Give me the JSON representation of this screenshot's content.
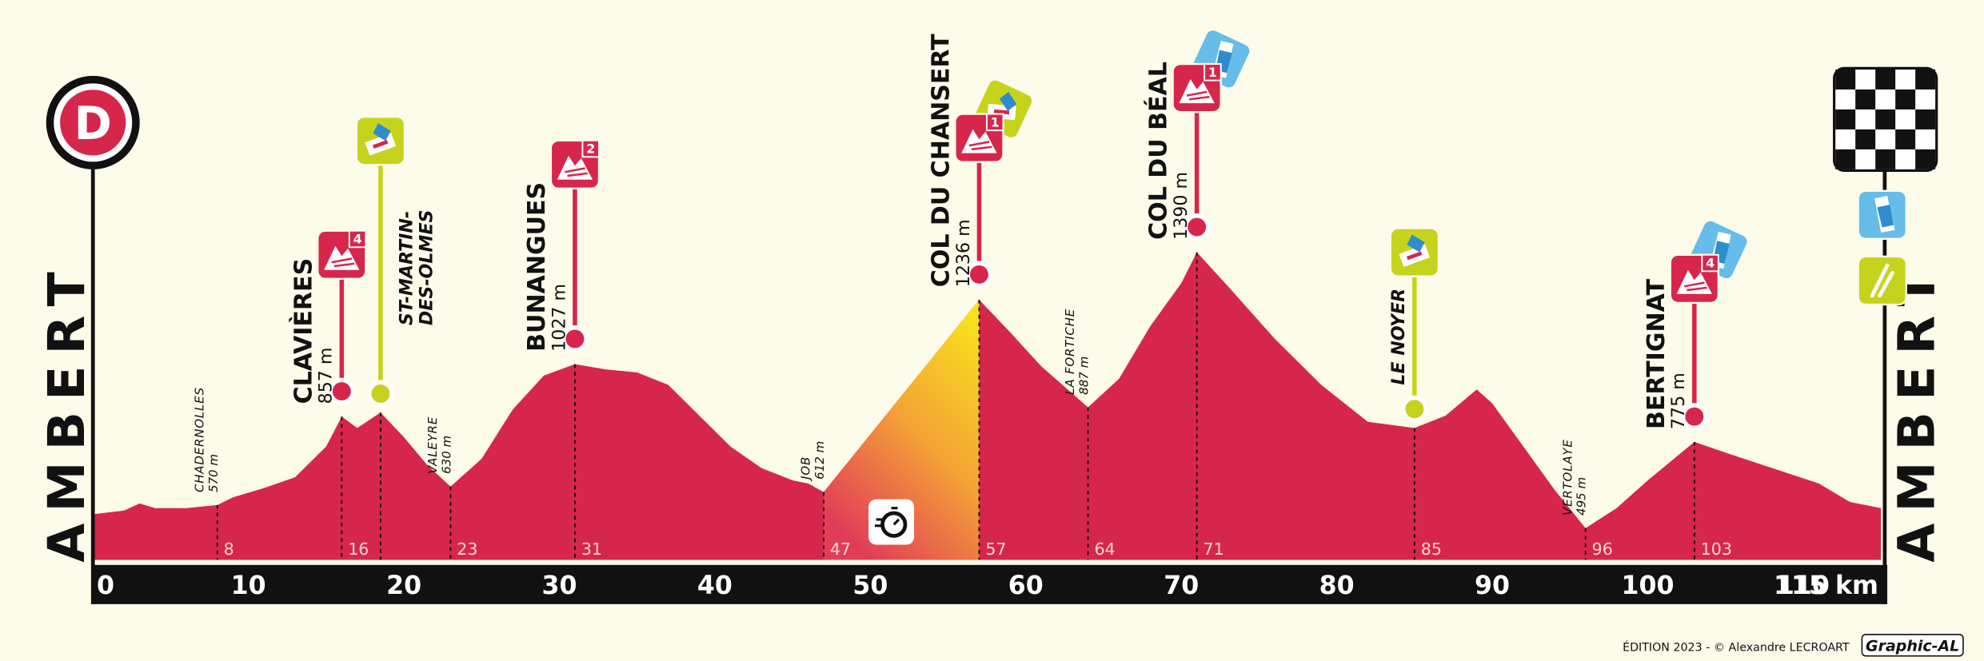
{
  "chart_data": {
    "type": "area",
    "color": "#d7264b",
    "start_label": "D",
    "start": "AMBERT",
    "finish": "AMBERT",
    "x": [
      0,
      2,
      3,
      4,
      6,
      8,
      9,
      11,
      13,
      15,
      16,
      17,
      18.5,
      20,
      21.5,
      23,
      25,
      27,
      29,
      31,
      33,
      35,
      37,
      39,
      41,
      43,
      45,
      46,
      47,
      57,
      59,
      61,
      64,
      66,
      68,
      70,
      71,
      73,
      76,
      79,
      82,
      85,
      87,
      89,
      90,
      92,
      94,
      96,
      98,
      100,
      103,
      105,
      108,
      111,
      113,
      115
    ],
    "values": [
      540,
      552,
      575,
      560,
      560,
      570,
      595,
      625,
      660,
      760,
      857,
      820,
      870,
      790,
      700,
      630,
      720,
      880,
      990,
      1027,
      1010,
      1000,
      960,
      860,
      760,
      690,
      650,
      640,
      612,
      1236,
      1130,
      1020,
      887,
      980,
      1150,
      1290,
      1390,
      1280,
      1110,
      960,
      840,
      820,
      860,
      945,
      900,
      760,
      620,
      495,
      560,
      650,
      775,
      740,
      690,
      640,
      580,
      560
    ],
    "xlim": [
      0,
      115
    ],
    "ylim": [
      392,
      1450
    ],
    "xticks": [
      0,
      10,
      20,
      30,
      40,
      50,
      60,
      70,
      80,
      90,
      100,
      110,
      {
        "value": 115,
        "label": "115 km"
      }
    ],
    "highlight_x": [
      47,
      57
    ],
    "waypoints": [
      {
        "name": "CHADERNOLLES",
        "km": 8,
        "elevation": 570,
        "elevation_label": "570 m",
        "kind": "place"
      },
      {
        "name": "CLAVIÈRES",
        "km": 16,
        "elevation": 857,
        "elevation_label": "857 m",
        "kind": "climb",
        "category": 4
      },
      {
        "name": [
          "ST-MARTIN-",
          "DES-OLMES"
        ],
        "km": 18.5,
        "elevation": 870,
        "kind": "sprint",
        "km_marker": false
      },
      {
        "name": "VALEYRE",
        "km": 23,
        "elevation": 630,
        "elevation_label": "630 m",
        "kind": "place"
      },
      {
        "name": "BUNANGUES",
        "km": 31,
        "elevation": 1027,
        "elevation_label": "1027 m",
        "kind": "climb",
        "category": 2
      },
      {
        "name": "JOB",
        "km": 47,
        "elevation": 612,
        "elevation_label": "612 m",
        "kind": "place"
      },
      {
        "name": "COL DU CHANSERT",
        "km": 57,
        "elevation": 1236,
        "elevation_label": "1236 m",
        "kind": "climb",
        "category": 1,
        "extra": "sprint"
      },
      {
        "name": "LA FORTICHE",
        "km": 64,
        "elevation": 887,
        "elevation_label": "887 m",
        "kind": "place"
      },
      {
        "name": "COL DU BÉAL",
        "km": 71,
        "elevation": 1390,
        "elevation_label": "1390 m",
        "kind": "climb",
        "category": 1,
        "extra": "feed"
      },
      {
        "name": "LE NOYER",
        "km": 85,
        "elevation": 820,
        "kind": "sprint"
      },
      {
        "name": "VERTOLAYE",
        "km": 96,
        "elevation": 495,
        "elevation_label": "495 m",
        "kind": "place"
      },
      {
        "name": "BERTIGNAT",
        "km": 103,
        "elevation": 775,
        "elevation_label": "775 m",
        "kind": "climb",
        "category": 4,
        "extra": "feed"
      }
    ],
    "credit": "ÉDITION 2023 - © Alexandre LECROART",
    "brand": "Graphic-AL"
  }
}
